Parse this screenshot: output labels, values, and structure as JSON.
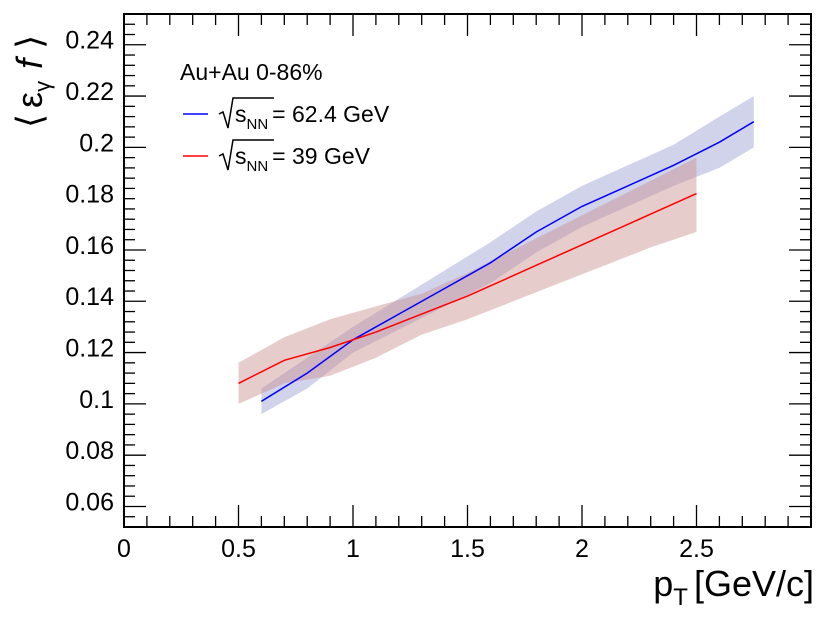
{
  "chart_data": {
    "type": "line",
    "title": "",
    "xlabel": {
      "main": "p",
      "sub": "T",
      "unit": "[GeV/c]"
    },
    "ylabel": {
      "open": "⟨",
      "epsilon": "ε",
      "sub": "γ",
      "f": "f",
      "close": "⟩"
    },
    "xlim": [
      0,
      3.0
    ],
    "ylim": [
      0.05,
      0.25
    ],
    "x_ticks": [
      0,
      0.5,
      1,
      1.5,
      2,
      2.5
    ],
    "x_tick_labels": [
      "0",
      "0.5",
      "1",
      "1.5",
      "2",
      "2.5"
    ],
    "y_ticks": [
      0.06,
      0.08,
      0.1,
      0.12,
      0.14,
      0.16,
      0.18,
      0.2,
      0.22,
      0.24
    ],
    "y_tick_labels": [
      "0.06",
      "0.08",
      "0.1",
      "0.12",
      "0.14",
      "0.16",
      "0.18",
      "0.2",
      "0.22",
      "0.24"
    ],
    "legend": {
      "header": "Au+Au 0-86%",
      "position": "top-left"
    },
    "series": [
      {
        "name": "62.4 GeV",
        "label_prefix": "s",
        "label_sub": "NN",
        "label_value": "= 62.4 GeV",
        "color": "#0000ff",
        "band_color": "#9a9dd0",
        "x": [
          0.6,
          0.8,
          1.0,
          1.2,
          1.4,
          1.6,
          1.8,
          2.0,
          2.2,
          2.4,
          2.6,
          2.75
        ],
        "y": [
          0.099,
          0.11,
          0.123,
          0.133,
          0.143,
          0.153,
          0.165,
          0.175,
          0.183,
          0.191,
          0.2,
          0.208
        ],
        "upper": [
          0.104,
          0.116,
          0.128,
          0.139,
          0.15,
          0.161,
          0.173,
          0.183,
          0.191,
          0.199,
          0.21,
          0.218
        ],
        "lower": [
          0.094,
          0.104,
          0.118,
          0.127,
          0.136,
          0.145,
          0.157,
          0.167,
          0.175,
          0.183,
          0.19,
          0.198
        ]
      },
      {
        "name": "39 GeV",
        "label_prefix": "s",
        "label_sub": "NN",
        "label_value": "= 39 GeV",
        "color": "#ff0000",
        "band_color": "#c98f8f",
        "x": [
          0.5,
          0.7,
          0.9,
          1.1,
          1.3,
          1.5,
          1.7,
          1.9,
          2.1,
          2.3,
          2.5
        ],
        "y": [
          0.106,
          0.115,
          0.12,
          0.126,
          0.133,
          0.14,
          0.148,
          0.156,
          0.164,
          0.172,
          0.18
        ],
        "upper": [
          0.114,
          0.124,
          0.131,
          0.136,
          0.141,
          0.149,
          0.158,
          0.167,
          0.176,
          0.185,
          0.194
        ],
        "lower": [
          0.098,
          0.106,
          0.109,
          0.116,
          0.125,
          0.131,
          0.138,
          0.145,
          0.152,
          0.159,
          0.165
        ]
      }
    ]
  }
}
